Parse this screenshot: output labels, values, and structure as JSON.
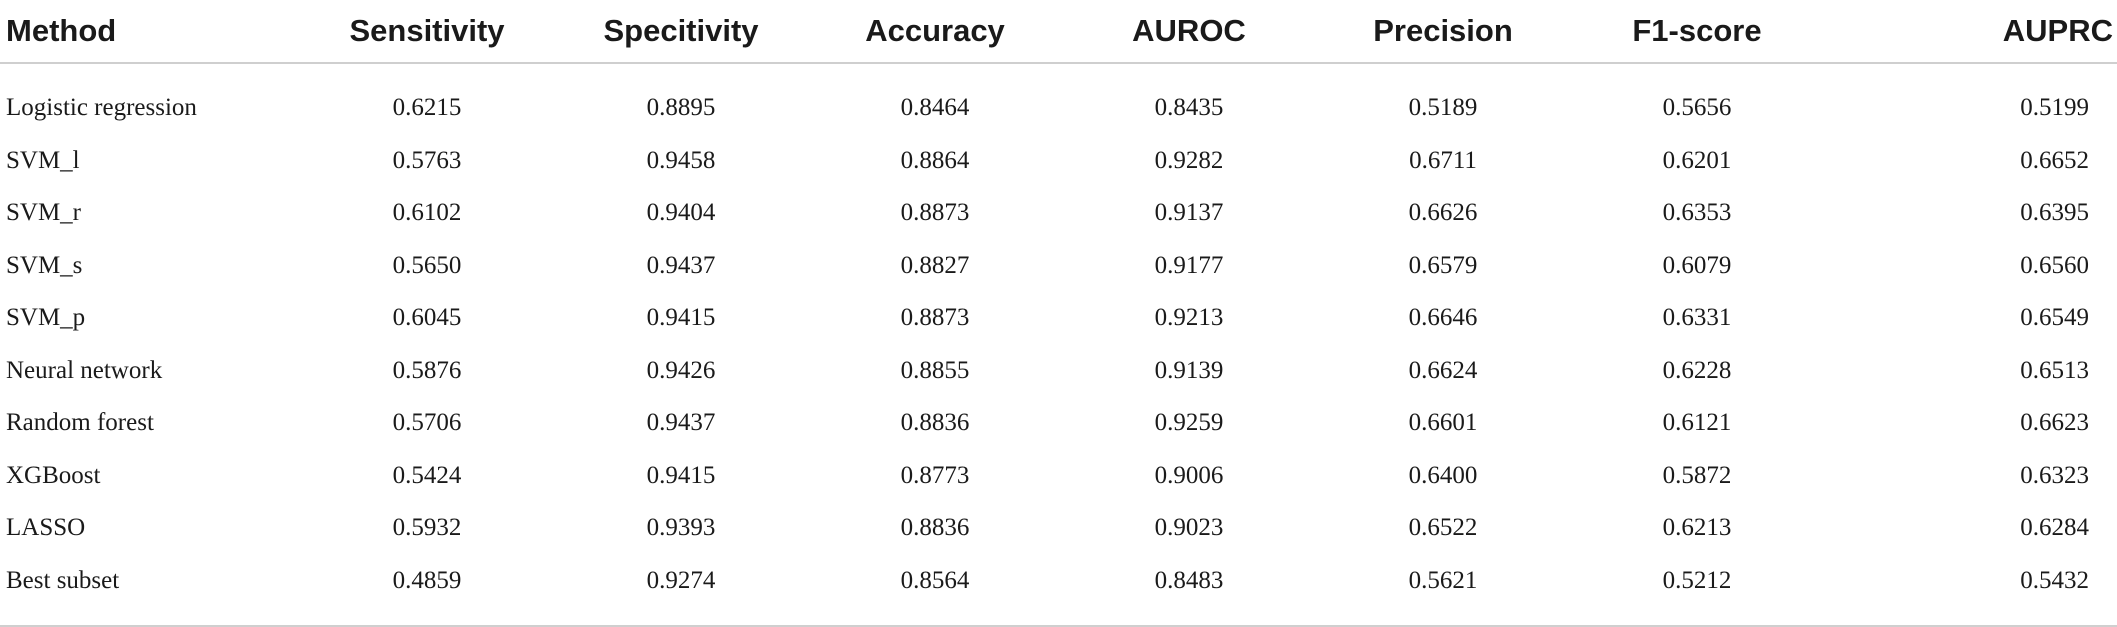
{
  "table": {
    "headers": [
      "Method",
      "Sensitivity",
      "Specitivity",
      "Accuracy",
      "AUROC",
      "Precision",
      "F1-score",
      "AUPRC"
    ],
    "rows": [
      [
        "Logistic regression",
        "0.6215",
        "0.8895",
        "0.8464",
        "0.8435",
        "0.5189",
        "0.5656",
        "0.5199"
      ],
      [
        "SVM_l",
        "0.5763",
        "0.9458",
        "0.8864",
        "0.9282",
        "0.6711",
        "0.6201",
        "0.6652"
      ],
      [
        "SVM_r",
        "0.6102",
        "0.9404",
        "0.8873",
        "0.9137",
        "0.6626",
        "0.6353",
        "0.6395"
      ],
      [
        "SVM_s",
        "0.5650",
        "0.9437",
        "0.8827",
        "0.9177",
        "0.6579",
        "0.6079",
        "0.6560"
      ],
      [
        "SVM_p",
        "0.6045",
        "0.9415",
        "0.8873",
        "0.9213",
        "0.6646",
        "0.6331",
        "0.6549"
      ],
      [
        "Neural network",
        "0.5876",
        "0.9426",
        "0.8855",
        "0.9139",
        "0.6624",
        "0.6228",
        "0.6513"
      ],
      [
        "Random forest",
        "0.5706",
        "0.9437",
        "0.8836",
        "0.9259",
        "0.6601",
        "0.6121",
        "0.6623"
      ],
      [
        "XGBoost",
        "0.5424",
        "0.9415",
        "0.8773",
        "0.9006",
        "0.6400",
        "0.5872",
        "0.6323"
      ],
      [
        "LASSO",
        "0.5932",
        "0.9393",
        "0.8836",
        "0.9023",
        "0.6522",
        "0.6213",
        "0.6284"
      ],
      [
        "Best subset",
        "0.4859",
        "0.9274",
        "0.8564",
        "0.8483",
        "0.5621",
        "0.5212",
        "0.5432"
      ]
    ]
  }
}
